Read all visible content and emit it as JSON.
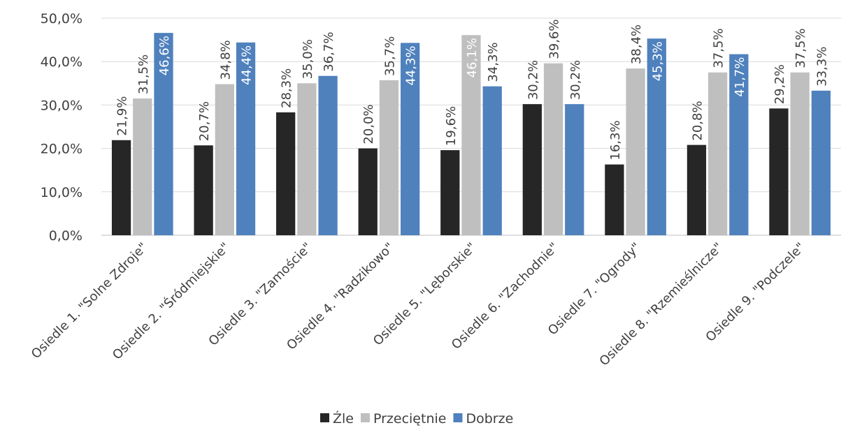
{
  "chart_data": {
    "type": "bar",
    "categories": [
      "Osiedle 1. \"Solne Zdroje\"",
      "Osiedle 2. \"Śródmiejskie\"",
      "Osiedle 3. \"Zamoście\"",
      "Osiedle 4. \"Radzikowo\"",
      "Osiedle 5. \"Lęborskie\"",
      "Osiedle 6. \"Zachodnie\"",
      "Osiedle 7. \"Ogrody\"",
      "Osiedle 8. \"Rzemieślnicze\"",
      "Osiedle 9. \"Podczele\""
    ],
    "series": [
      {
        "name": "Źle",
        "color": "#262626",
        "values": [
          21.9,
          20.7,
          28.3,
          20.0,
          19.6,
          30.2,
          16.3,
          20.8,
          29.2
        ],
        "labels": [
          "21,9%",
          "20,7%",
          "28,3%",
          "20,0%",
          "19,6%",
          "30,2%",
          "16,3%",
          "20,8%",
          "29,2%"
        ]
      },
      {
        "name": "Przeciętnie",
        "color": "#bfbfbf",
        "values": [
          31.5,
          34.8,
          35.0,
          35.7,
          46.1,
          39.6,
          38.4,
          37.5,
          37.5
        ],
        "labels": [
          "31,5%",
          "34,8%",
          "35,0%",
          "35,7%",
          "46,1%",
          "39,6%",
          "38,4%",
          "37,5%",
          "37,5%"
        ]
      },
      {
        "name": "Dobrze",
        "color": "#4f81bd",
        "values": [
          46.6,
          44.4,
          36.7,
          44.3,
          34.3,
          30.2,
          45.3,
          41.7,
          33.3
        ],
        "labels": [
          "46,6%",
          "44,4%",
          "36,7%",
          "44,3%",
          "34,3%",
          "30,2%",
          "45,3%",
          "41,7%",
          "33,3%"
        ]
      }
    ],
    "y_ticks": [
      "0,0%",
      "10,0%",
      "20,0%",
      "30,0%",
      "40,0%",
      "50,0%"
    ],
    "ylim": [
      0,
      50
    ],
    "grid": true,
    "legend_position": "bottom"
  }
}
